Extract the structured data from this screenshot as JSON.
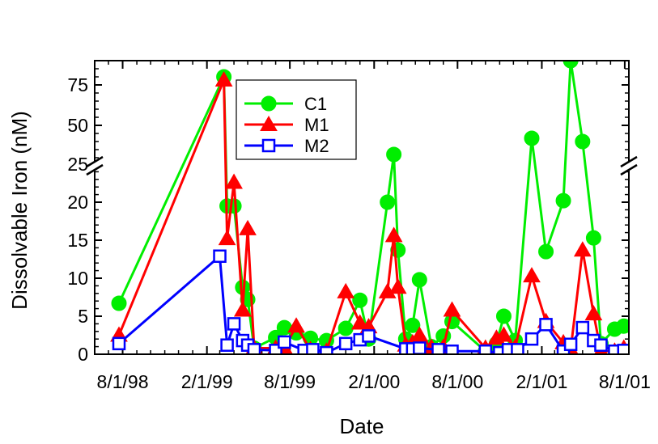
{
  "chart_data": {
    "type": "line",
    "title": "",
    "xlabel": "Date",
    "ylabel": "Dissolvable Iron (nM)",
    "x_ticks": [
      "8/1/98",
      "2/1/99",
      "8/1/99",
      "2/1/00",
      "8/1/00",
      "2/1/01",
      "8/1/01"
    ],
    "xlim": [
      "1998-06-01",
      "2001-08-10"
    ],
    "y_axis": {
      "broken": true,
      "lower_segment": {
        "ylim": [
          0,
          25
        ],
        "ticks": [
          0,
          5,
          10,
          15,
          20
        ]
      },
      "upper_segment": {
        "ylim": [
          25,
          90
        ],
        "ticks": [
          25,
          50,
          75
        ]
      }
    },
    "grid": false,
    "legend_position": "top-center",
    "series": [
      {
        "name": "C1",
        "color": "#00ee00",
        "marker": "circle",
        "points": [
          [
            "1998-07-24",
            6.7
          ],
          [
            "1999-03-10",
            80
          ],
          [
            "1999-03-17",
            19.5
          ],
          [
            "1999-04-01",
            19.5
          ],
          [
            "1999-04-20",
            8.8
          ],
          [
            "1999-05-01",
            7.2
          ],
          [
            "1999-05-15",
            0.8
          ],
          [
            "1999-07-01",
            2.2
          ],
          [
            "1999-07-20",
            3.5
          ],
          [
            "1999-08-15",
            2.8
          ],
          [
            "1999-09-15",
            2.1
          ],
          [
            "1999-10-20",
            1.8
          ],
          [
            "1999-12-01",
            3.4
          ],
          [
            "2000-01-01",
            7.1
          ],
          [
            "2000-01-20",
            2.0
          ],
          [
            "2000-03-01",
            20
          ],
          [
            "2000-03-15",
            32
          ],
          [
            "2000-03-24",
            13.7
          ],
          [
            "2000-04-10",
            2.0
          ],
          [
            "2000-04-25",
            3.8
          ],
          [
            "2000-05-10",
            9.8
          ],
          [
            "2000-06-05",
            1.0
          ],
          [
            "2000-07-01",
            2.4
          ],
          [
            "2000-07-20",
            4.3
          ],
          [
            "2000-10-01",
            0.4
          ],
          [
            "2000-10-25",
            1.4
          ],
          [
            "2000-11-10",
            5.0
          ],
          [
            "2000-12-05",
            1.8
          ],
          [
            "2001-01-10",
            42
          ],
          [
            "2001-02-10",
            13.5
          ],
          [
            "2001-03-20",
            20.2
          ],
          [
            "2001-04-05",
            90
          ],
          [
            "2001-05-01",
            40
          ],
          [
            "2001-05-25",
            15.3
          ],
          [
            "2001-06-10",
            1.4
          ],
          [
            "2001-07-10",
            3.3
          ],
          [
            "2001-07-30",
            3.7
          ]
        ]
      },
      {
        "name": "M1",
        "color": "#ff0000",
        "marker": "triangle",
        "points": [
          [
            "1998-07-24",
            2.5
          ],
          [
            "1999-03-10",
            78
          ],
          [
            "1999-03-17",
            15.2
          ],
          [
            "1999-04-01",
            22.6
          ],
          [
            "1999-04-20",
            5.8
          ],
          [
            "1999-05-01",
            16.5
          ],
          [
            "1999-05-15",
            0.8
          ],
          [
            "1999-07-01",
            0.8
          ],
          [
            "1999-07-20",
            0.8
          ],
          [
            "1999-08-15",
            3.7
          ],
          [
            "1999-09-15",
            0.6
          ],
          [
            "1999-10-20",
            0.4
          ],
          [
            "1999-12-01",
            8.2
          ],
          [
            "2000-01-01",
            4.1
          ],
          [
            "2000-01-20",
            3.6
          ],
          [
            "2000-03-01",
            8.2
          ],
          [
            "2000-03-15",
            15.6
          ],
          [
            "2000-03-24",
            8.8
          ],
          [
            "2000-04-10",
            1.2
          ],
          [
            "2000-04-25",
            1.5
          ],
          [
            "2000-05-10",
            2.5
          ],
          [
            "2000-06-05",
            0.9
          ],
          [
            "2000-07-01",
            0.9
          ],
          [
            "2000-07-20",
            5.8
          ],
          [
            "2000-10-01",
            0.8
          ],
          [
            "2000-10-25",
            2.1
          ],
          [
            "2000-11-10",
            2.5
          ],
          [
            "2000-12-05",
            0.9
          ],
          [
            "2001-01-10",
            10.3
          ],
          [
            "2001-02-10",
            4.3
          ],
          [
            "2001-03-20",
            1.5
          ],
          [
            "2001-04-05",
            0.6
          ],
          [
            "2001-05-01",
            13.7
          ],
          [
            "2001-05-25",
            5.3
          ],
          [
            "2001-06-10",
            0.4
          ],
          [
            "2001-07-10",
            0.4
          ],
          [
            "2001-07-30",
            0.8
          ]
        ]
      },
      {
        "name": "M2",
        "color": "#0000ff",
        "marker": "square",
        "points": [
          [
            "1998-07-24",
            1.4
          ],
          [
            "1999-03-01",
            12.9
          ],
          [
            "1999-03-17",
            1.2
          ],
          [
            "1999-04-01",
            4.0
          ],
          [
            "1999-04-20",
            1.8
          ],
          [
            "1999-05-01",
            1.2
          ],
          [
            "1999-05-15",
            0.6
          ],
          [
            "1999-07-01",
            0.5
          ],
          [
            "1999-07-20",
            1.6
          ],
          [
            "1999-09-01",
            0.5
          ],
          [
            "1999-09-20",
            0.6
          ],
          [
            "1999-10-20",
            0.2
          ],
          [
            "1999-12-01",
            1.4
          ],
          [
            "2000-01-01",
            1.9
          ],
          [
            "2000-01-20",
            2.4
          ],
          [
            "2000-04-10",
            0.7
          ],
          [
            "2000-04-25",
            0.7
          ],
          [
            "2000-05-10",
            0.8
          ],
          [
            "2000-06-20",
            0.6
          ],
          [
            "2000-07-20",
            0.4
          ],
          [
            "2000-10-01",
            0.4
          ],
          [
            "2000-11-01",
            0.2
          ],
          [
            "2000-11-20",
            0.6
          ],
          [
            "2000-12-10",
            0.6
          ],
          [
            "2001-01-10",
            2.0
          ],
          [
            "2001-02-10",
            3.9
          ],
          [
            "2001-03-20",
            0.4
          ],
          [
            "2001-04-05",
            1.3
          ],
          [
            "2001-05-01",
            3.5
          ],
          [
            "2001-05-25",
            1.8
          ],
          [
            "2001-06-10",
            1.2
          ],
          [
            "2001-07-10",
            0.4
          ],
          [
            "2001-07-30",
            0.5
          ]
        ]
      }
    ]
  }
}
